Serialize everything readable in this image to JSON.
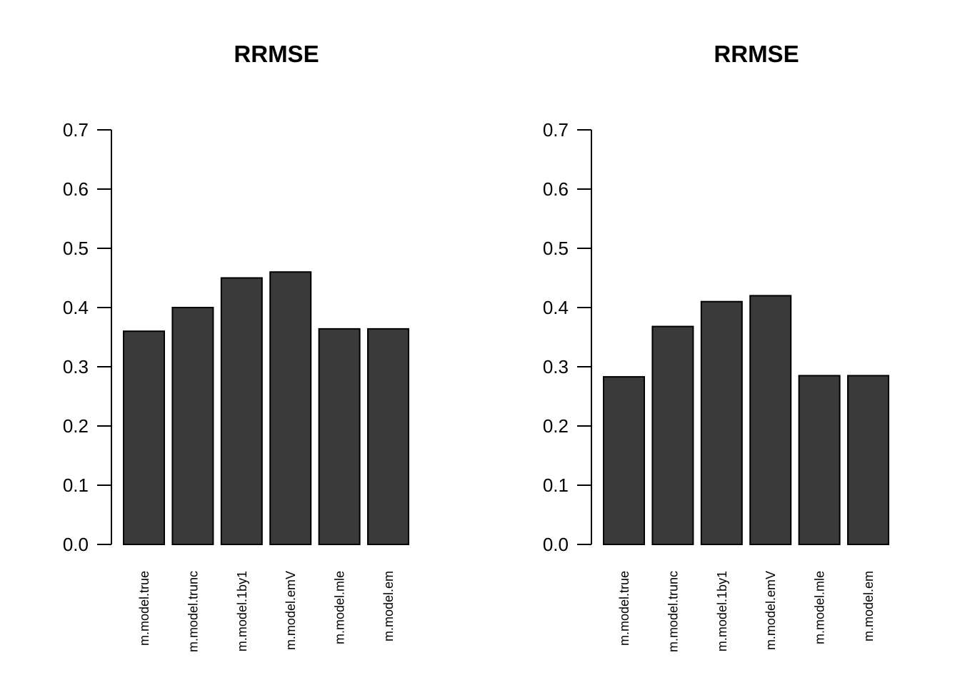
{
  "figure": {
    "background": "#ffffff"
  },
  "colors": {
    "bar_fill": "#3a3a3a",
    "bar_stroke": "#000000",
    "axis": "#000000",
    "text": "#000000"
  },
  "chart_data": [
    {
      "type": "bar",
      "title": "RRMSE",
      "categories": [
        "m.model.true",
        "m.model.trunc",
        "m.model.1by1",
        "m.model.emV",
        "m.model.mle",
        "m.model.em"
      ],
      "values": [
        0.36,
        0.4,
        0.45,
        0.46,
        0.364,
        0.364
      ],
      "xlabel": "",
      "ylabel": "",
      "ylim": [
        0.0,
        0.7
      ],
      "yticks": [
        0.0,
        0.1,
        0.2,
        0.3,
        0.4,
        0.5,
        0.6,
        0.7
      ],
      "ytick_labels": [
        "0.0",
        "0.1",
        "0.2",
        "0.3",
        "0.4",
        "0.5",
        "0.6",
        "0.7"
      ],
      "grid": false,
      "legend": null,
      "x_label_rotation": 90
    },
    {
      "type": "bar",
      "title": "RRMSE",
      "categories": [
        "m.model.true",
        "m.model.trunc",
        "m.model.1by1",
        "m.model.emV",
        "m.model.mle",
        "m.model.em"
      ],
      "values": [
        0.283,
        0.368,
        0.41,
        0.42,
        0.285,
        0.285
      ],
      "xlabel": "",
      "ylabel": "",
      "ylim": [
        0.0,
        0.7
      ],
      "yticks": [
        0.0,
        0.1,
        0.2,
        0.3,
        0.4,
        0.5,
        0.6,
        0.7
      ],
      "ytick_labels": [
        "0.0",
        "0.1",
        "0.2",
        "0.3",
        "0.4",
        "0.5",
        "0.6",
        "0.7"
      ],
      "grid": false,
      "legend": null,
      "x_label_rotation": 90
    }
  ]
}
